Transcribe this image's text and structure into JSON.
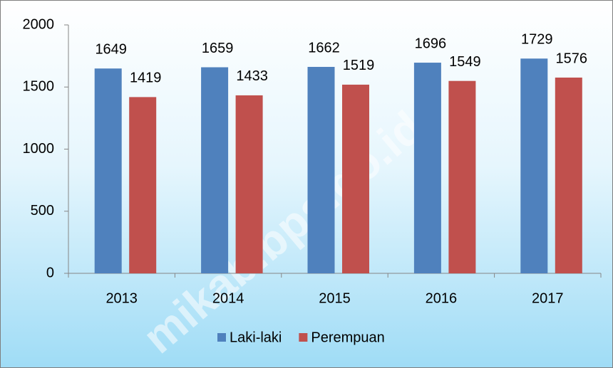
{
  "chart_data": {
    "type": "bar",
    "categories": [
      "2013",
      "2014",
      "2015",
      "2016",
      "2017"
    ],
    "series": [
      {
        "name": "Laki-laki",
        "color": "#4f81bd",
        "values": [
          1649,
          1659,
          1662,
          1696,
          1729
        ]
      },
      {
        "name": "Perempuan",
        "color": "#c0504d",
        "values": [
          1419,
          1433,
          1519,
          1549,
          1576
        ]
      }
    ],
    "ylim": [
      0,
      2000
    ],
    "yticks": [
      0,
      500,
      1000,
      1500,
      2000
    ],
    "legend": "bottom",
    "watermark": "mikab.bps.go.id"
  }
}
